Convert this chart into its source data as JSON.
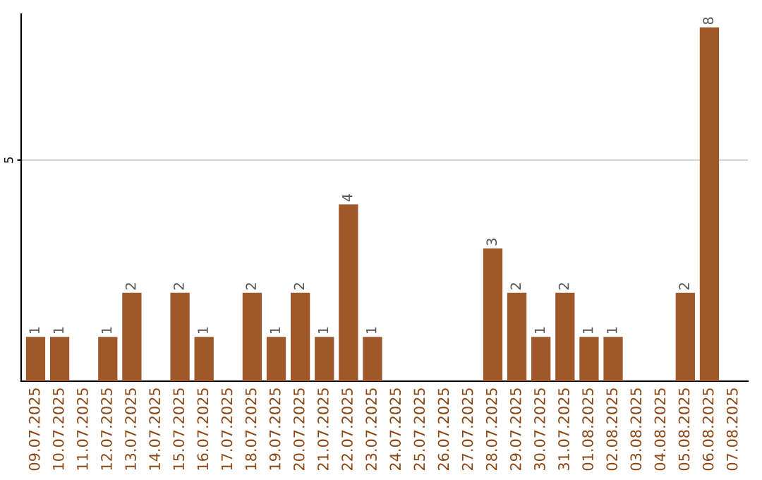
{
  "chart_data": {
    "type": "bar",
    "categories": [
      "09.07.2025",
      "10.07.2025",
      "11.07.2025",
      "12.07.2025",
      "13.07.2025",
      "14.07.2025",
      "15.07.2025",
      "16.07.2025",
      "17.07.2025",
      "18.07.2025",
      "19.07.2025",
      "20.07.2025",
      "21.07.2025",
      "22.07.2025",
      "23.07.2025",
      "24.07.2025",
      "25.07.2025",
      "26.07.2025",
      "27.07.2025",
      "28.07.2025",
      "29.07.2025",
      "30.07.2025",
      "31.07.2025",
      "01.08.2025",
      "02.08.2025",
      "03.08.2025",
      "04.08.2025",
      "05.08.2025",
      "06.08.2025",
      "07.08.2025"
    ],
    "values": [
      1,
      1,
      0,
      1,
      2,
      0,
      2,
      1,
      0,
      2,
      1,
      2,
      1,
      4,
      1,
      0,
      0,
      0,
      0,
      3,
      2,
      1,
      2,
      1,
      1,
      0,
      0,
      2,
      8,
      0
    ],
    "value_labels": [
      "1",
      "1",
      null,
      "1",
      "2",
      null,
      "2",
      "1",
      null,
      "2",
      "1",
      "2",
      "1",
      "4",
      "1",
      null,
      null,
      null,
      null,
      "3",
      "2",
      "1",
      "2",
      "1",
      "1",
      null,
      null,
      "2",
      "8",
      null
    ],
    "color": "#a0582a",
    "ylim": [
      0,
      8.3
    ],
    "yticks": [
      5
    ],
    "grid": "y",
    "legend": false
  }
}
